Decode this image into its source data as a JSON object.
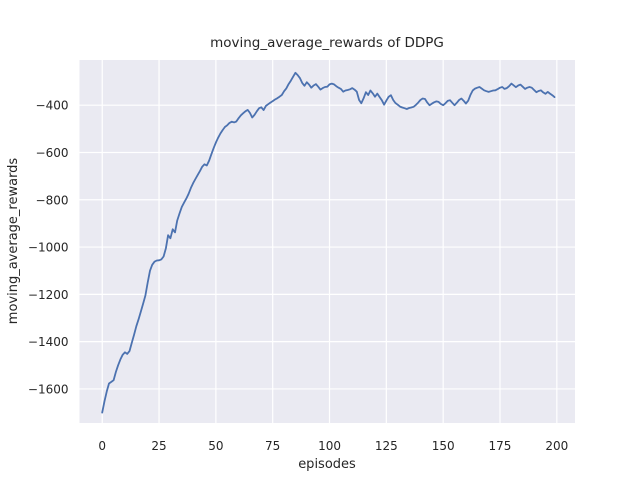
{
  "chart_data": {
    "type": "line",
    "title": "moving_average_rewards of DDPG",
    "xlabel": "episodes",
    "ylabel": "moving_average_rewards",
    "xlim": [
      -10,
      208
    ],
    "ylim": [
      -1744,
      -209
    ],
    "grid": true,
    "legend": false,
    "x_ticks": [
      0,
      25,
      50,
      75,
      100,
      125,
      150,
      175,
      200
    ],
    "x_tick_labels": [
      "0",
      "25",
      "50",
      "75",
      "100",
      "125",
      "150",
      "175",
      "200"
    ],
    "y_ticks": [
      -400,
      -600,
      -800,
      -1000,
      -1200,
      -1400,
      -1600
    ],
    "y_tick_labels": [
      "−400",
      "−600",
      "−800",
      "−1000",
      "−1200",
      "−1400",
      "−1600"
    ],
    "style": {
      "figure_background": "#ffffff",
      "axes_background": "#eaeaf2",
      "grid_color": "#ffffff",
      "line_color": "#4c72b0",
      "text_color": "#262626"
    },
    "series": [
      {
        "name": "moving_average_rewards",
        "x_start": 0,
        "x_step": 1,
        "values": [
          -1700,
          -1652,
          -1610,
          -1577,
          -1570,
          -1563,
          -1528,
          -1500,
          -1475,
          -1455,
          -1445,
          -1452,
          -1440,
          -1405,
          -1370,
          -1335,
          -1305,
          -1272,
          -1240,
          -1205,
          -1150,
          -1100,
          -1075,
          -1062,
          -1057,
          -1056,
          -1052,
          -1040,
          -1005,
          -950,
          -963,
          -925,
          -938,
          -888,
          -858,
          -830,
          -812,
          -795,
          -775,
          -750,
          -730,
          -712,
          -695,
          -678,
          -660,
          -650,
          -655,
          -635,
          -608,
          -582,
          -558,
          -538,
          -520,
          -505,
          -492,
          -485,
          -475,
          -470,
          -473,
          -469,
          -455,
          -443,
          -434,
          -426,
          -420,
          -433,
          -452,
          -441,
          -426,
          -413,
          -409,
          -421,
          -403,
          -396,
          -389,
          -383,
          -376,
          -371,
          -364,
          -357,
          -341,
          -329,
          -311,
          -296,
          -279,
          -263,
          -273,
          -286,
          -306,
          -318,
          -303,
          -313,
          -326,
          -317,
          -311,
          -322,
          -334,
          -328,
          -323,
          -322,
          -312,
          -309,
          -312,
          -320,
          -326,
          -331,
          -343,
          -338,
          -336,
          -333,
          -328,
          -334,
          -343,
          -378,
          -392,
          -371,
          -345,
          -357,
          -338,
          -350,
          -364,
          -351,
          -365,
          -379,
          -398,
          -381,
          -365,
          -358,
          -378,
          -391,
          -398,
          -406,
          -410,
          -413,
          -416,
          -412,
          -410,
          -407,
          -399,
          -389,
          -378,
          -372,
          -374,
          -389,
          -400,
          -394,
          -388,
          -384,
          -386,
          -395,
          -400,
          -392,
          -382,
          -379,
          -390,
          -400,
          -390,
          -378,
          -372,
          -381,
          -393,
          -381,
          -357,
          -338,
          -330,
          -326,
          -323,
          -330,
          -337,
          -341,
          -344,
          -341,
          -338,
          -337,
          -332,
          -326,
          -323,
          -331,
          -328,
          -320,
          -309,
          -316,
          -324,
          -317,
          -313,
          -322,
          -331,
          -326,
          -323,
          -326,
          -336,
          -345,
          -340,
          -337,
          -346,
          -352,
          -344,
          -351,
          -358,
          -366
        ]
      }
    ]
  }
}
